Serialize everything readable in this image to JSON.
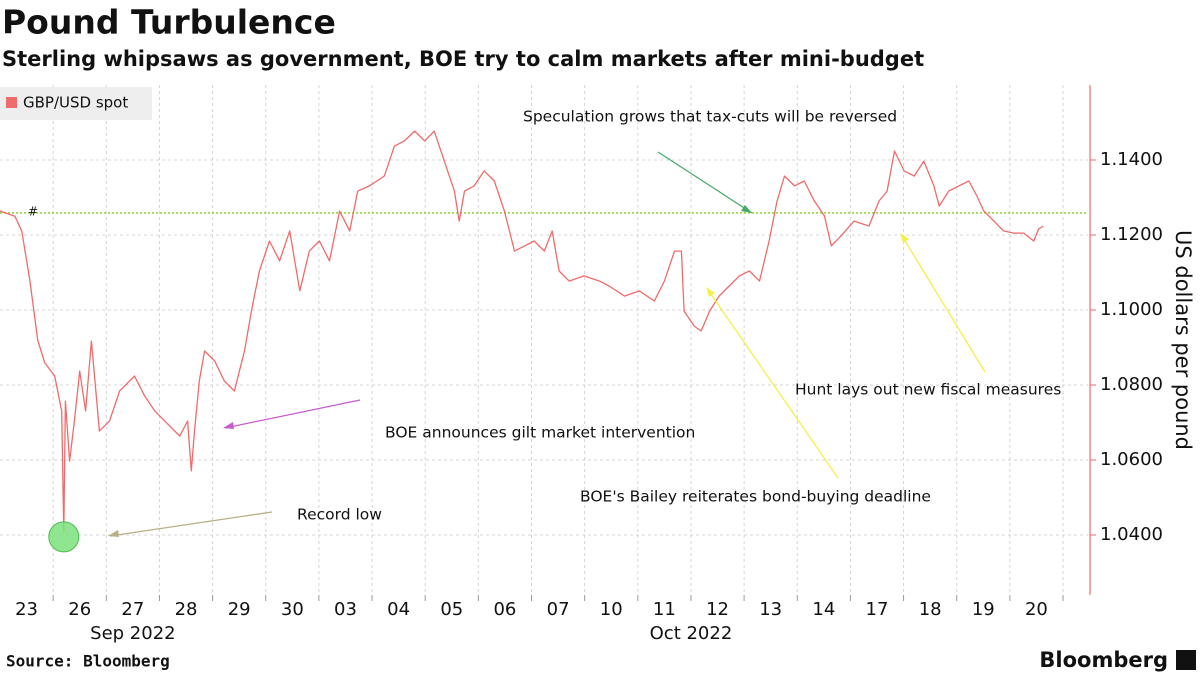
{
  "chart_data": {
    "type": "line",
    "title": "Pound Turbulence",
    "subtitle": "Sterling whipsaws as government, BOE try to calm markets after mini-budget",
    "y_axis_label": "US dollars per pound",
    "source": "Source: Bloomberg",
    "brand": "Bloomberg",
    "x": [
      0.0,
      0.28,
      0.41,
      0.56,
      0.71,
      0.84,
      1.03,
      1.16,
      1.2,
      1.23,
      1.31,
      1.4,
      1.5,
      1.61,
      1.72,
      1.87,
      2.06,
      2.25,
      2.53,
      2.72,
      2.91,
      3.19,
      3.38,
      3.53,
      3.6,
      3.66,
      3.75,
      3.85,
      4.04,
      4.22,
      4.41,
      4.6,
      4.73,
      4.88,
      5.07,
      5.26,
      5.45,
      5.64,
      5.82,
      6.01,
      6.2,
      6.39,
      6.58,
      6.73,
      6.95,
      7.23,
      7.42,
      7.61,
      7.8,
      7.99,
      8.17,
      8.36,
      8.55,
      8.64,
      8.74,
      8.92,
      9.11,
      9.3,
      9.49,
      9.68,
      9.87,
      10.05,
      10.24,
      10.39,
      10.52,
      10.71,
      10.99,
      11.28,
      11.46,
      11.75,
      12.03,
      12.31,
      12.5,
      12.69,
      12.82,
      12.87,
      13.06,
      13.19,
      13.35,
      13.53,
      13.72,
      13.91,
      14.1,
      14.29,
      14.47,
      14.62,
      14.76,
      14.95,
      15.13,
      15.32,
      15.51,
      15.64,
      15.82,
      16.07,
      16.35,
      16.54,
      16.69,
      16.83,
      17.01,
      17.2,
      17.38,
      17.57,
      17.67,
      17.85,
      18.04,
      18.23,
      18.38,
      18.51,
      18.7,
      18.88,
      19.07,
      19.26,
      19.45,
      19.54,
      19.63
    ],
    "series": [
      {
        "name": "GBP/USD spot",
        "color": "#f06b6b",
        "values": [
          1.1264,
          1.125,
          1.121,
          1.108,
          1.092,
          1.086,
          1.0824,
          1.073,
          1.041,
          1.0757,
          1.0597,
          1.0704,
          1.0837,
          1.0731,
          1.0917,
          1.0677,
          1.0704,
          1.0784,
          1.0824,
          1.0771,
          1.0731,
          1.0691,
          1.0664,
          1.0704,
          1.0571,
          1.0677,
          1.0811,
          1.0891,
          1.0864,
          1.0811,
          1.0784,
          1.0891,
          1.0997,
          1.1104,
          1.1184,
          1.1131,
          1.1211,
          1.1051,
          1.1157,
          1.1184,
          1.1131,
          1.1264,
          1.1211,
          1.1317,
          1.1331,
          1.1357,
          1.1437,
          1.1451,
          1.1477,
          1.1451,
          1.1477,
          1.1397,
          1.1317,
          1.1237,
          1.1317,
          1.1331,
          1.1371,
          1.1344,
          1.1264,
          1.1157,
          1.1171,
          1.1184,
          1.1157,
          1.1211,
          1.1104,
          1.1077,
          1.1091,
          1.1077,
          1.1064,
          1.1037,
          1.1051,
          1.1024,
          1.1077,
          1.1157,
          1.1157,
          1.0997,
          1.0957,
          1.0944,
          1.0997,
          1.1037,
          1.1064,
          1.1091,
          1.1104,
          1.1077,
          1.1184,
          1.1291,
          1.1357,
          1.1331,
          1.1344,
          1.1291,
          1.1251,
          1.1171,
          1.1197,
          1.1237,
          1.1224,
          1.1291,
          1.1317,
          1.1424,
          1.1371,
          1.1357,
          1.1397,
          1.1331,
          1.1277,
          1.1317,
          1.1331,
          1.1344,
          1.1304,
          1.1264,
          1.1237,
          1.1211,
          1.1205,
          1.1205,
          1.1184,
          1.1216,
          1.1224
        ]
      }
    ],
    "xlim": [
      0,
      20.47
    ],
    "xticks": [
      {
        "value": 0.5,
        "label": "23"
      },
      {
        "value": 1.5,
        "label": "26"
      },
      {
        "value": 2.5,
        "label": "27"
      },
      {
        "value": 3.5,
        "label": "28"
      },
      {
        "value": 4.5,
        "label": "29"
      },
      {
        "value": 5.5,
        "label": "30"
      },
      {
        "value": 6.5,
        "label": "03"
      },
      {
        "value": 7.5,
        "label": "04"
      },
      {
        "value": 8.5,
        "label": "05"
      },
      {
        "value": 9.5,
        "label": "06"
      },
      {
        "value": 10.5,
        "label": "07"
      },
      {
        "value": 11.5,
        "label": "10"
      },
      {
        "value": 12.5,
        "label": "11"
      },
      {
        "value": 13.5,
        "label": "12"
      },
      {
        "value": 14.5,
        "label": "13"
      },
      {
        "value": 15.5,
        "label": "14"
      },
      {
        "value": 16.5,
        "label": "17"
      },
      {
        "value": 17.5,
        "label": "18"
      },
      {
        "value": 18.5,
        "label": "19"
      },
      {
        "value": 19.5,
        "label": "20"
      }
    ],
    "x_minor_ticks": [
      1,
      2,
      3,
      4,
      5,
      6,
      7,
      8,
      9,
      10,
      11,
      12,
      13,
      14,
      15,
      16,
      17,
      18,
      19,
      20
    ],
    "x_group_labels": [
      {
        "value": 2.5,
        "label": "Sep 2022"
      },
      {
        "value": 13.0,
        "label": "Oct 2022"
      }
    ],
    "ylim": [
      1.024,
      1.16
    ],
    "yticks": [
      {
        "value": 1.04,
        "label": "1.0400"
      },
      {
        "value": 1.06,
        "label": "1.0600"
      },
      {
        "value": 1.08,
        "label": "1.0800"
      },
      {
        "value": 1.1,
        "label": "1.1000"
      },
      {
        "value": 1.12,
        "label": "1.1200"
      },
      {
        "value": 1.14,
        "label": "1.1400"
      }
    ],
    "grid": true,
    "legend": "top-left",
    "reference_line": {
      "value": 1.1259,
      "label": "#",
      "color": "#8ad32a"
    },
    "highlight": {
      "x": 1.2,
      "value": 1.0395,
      "color": "#7de07d"
    },
    "annotations": [
      "Speculation grows that tax-cuts will be reversed",
      "BOE announces gilt market intervention",
      "Record low",
      "BOE's Bailey reiterates bond-buying deadline",
      "Hunt lays out new fiscal measures"
    ]
  }
}
